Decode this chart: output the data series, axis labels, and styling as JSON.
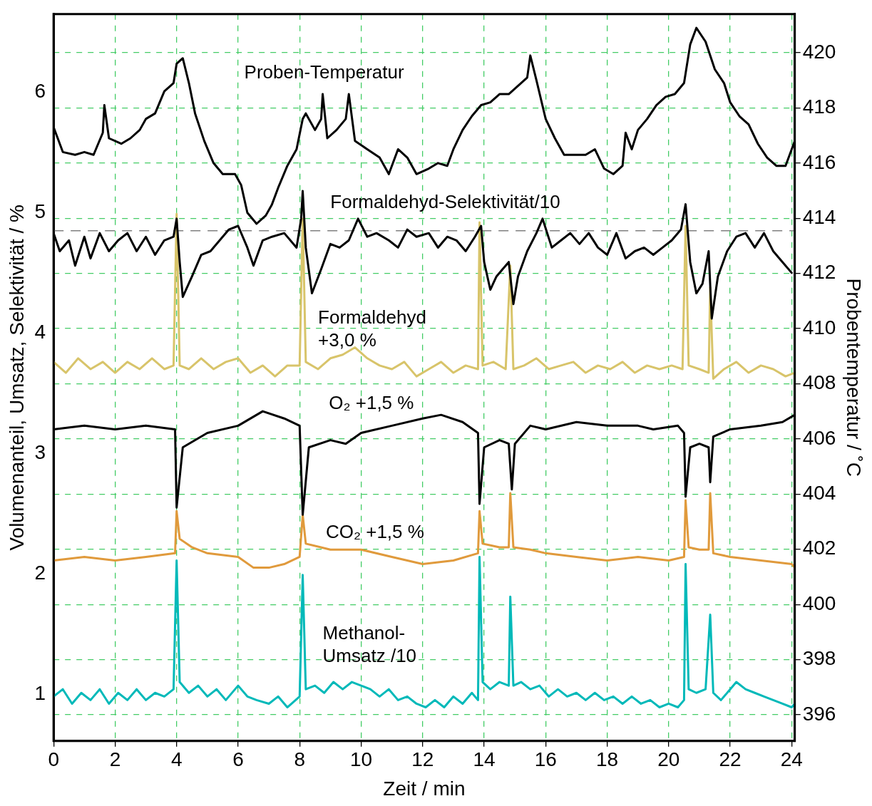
{
  "chart_data": {
    "type": "line",
    "xlabel": "Zeit / min",
    "ylabel": "Volumenanteil, Umsatz, Selektivität / %",
    "y2label": "Probentemperatur / ˚C",
    "xlim": [
      0,
      24.1
    ],
    "xticks": [
      0,
      2,
      4,
      6,
      8,
      10,
      12,
      14,
      16,
      18,
      20,
      22,
      24
    ],
    "ylim": [
      0.61,
      6.65
    ],
    "yticks": [
      1,
      2,
      3,
      4,
      5,
      6
    ],
    "y2lim": [
      395.05,
      421.4
    ],
    "y2ticks": [
      396,
      398,
      400,
      402,
      404,
      406,
      408,
      410,
      412,
      414,
      416,
      418,
      420
    ],
    "grid": true,
    "legend": false,
    "marker": "none",
    "line_style": "solid",
    "ref_lines": [
      {
        "axis": "y",
        "value": 4.85,
        "color": "#808080",
        "line_style": "dashed"
      }
    ],
    "series": [
      {
        "name": "Proben-Temperatur",
        "color": "#000000",
        "axis": "y2",
        "x": [
          0,
          0.3,
          0.7,
          1.0,
          1.3,
          1.6,
          1.65,
          1.8,
          2.2,
          2.5,
          2.8,
          3.0,
          3.3,
          3.6,
          3.9,
          4.0,
          4.2,
          4.4,
          4.6,
          4.9,
          5.2,
          5.5,
          5.9,
          6.1,
          6.3,
          6.6,
          6.9,
          7.1,
          7.3,
          7.6,
          7.9,
          8.1,
          8.2,
          8.5,
          8.7,
          8.75,
          8.9,
          9.2,
          9.5,
          9.6,
          9.8,
          10.2,
          10.6,
          10.9,
          11.2,
          11.5,
          11.8,
          12.2,
          12.5,
          12.8,
          13.0,
          13.3,
          13.6,
          13.9,
          14.2,
          14.5,
          14.8,
          15.0,
          15.4,
          15.5,
          15.7,
          16.0,
          16.3,
          16.6,
          17.0,
          17.3,
          17.6,
          17.9,
          18.2,
          18.5,
          18.6,
          18.8,
          19.0,
          19.3,
          19.6,
          19.9,
          20.2,
          20.5,
          20.7,
          20.9,
          21.2,
          21.5,
          21.8,
          22.0,
          22.3,
          22.6,
          22.9,
          23.2,
          23.5,
          23.8,
          24.0,
          24.1
        ],
        "values": [
          417.3,
          416.4,
          416.3,
          416.4,
          416.3,
          417.1,
          418.1,
          416.9,
          416.7,
          416.9,
          417.2,
          417.6,
          417.8,
          418.6,
          418.9,
          419.6,
          419.8,
          418.9,
          417.8,
          416.8,
          416.0,
          415.6,
          415.6,
          415.2,
          414.2,
          413.8,
          414.1,
          414.5,
          415.1,
          415.9,
          416.5,
          417.6,
          417.8,
          417.2,
          417.6,
          418.5,
          416.9,
          417.2,
          417.6,
          418.5,
          416.8,
          416.5,
          416.2,
          415.6,
          416.5,
          416.2,
          415.6,
          415.8,
          416.0,
          415.9,
          416.5,
          417.2,
          417.7,
          418.1,
          418.2,
          418.5,
          418.5,
          418.7,
          419.1,
          419.9,
          419.0,
          417.6,
          416.9,
          416.3,
          416.3,
          416.3,
          416.5,
          415.8,
          415.6,
          415.9,
          417.1,
          416.5,
          417.2,
          417.6,
          418.1,
          418.4,
          418.5,
          418.9,
          420.3,
          420.9,
          420.4,
          419.4,
          418.9,
          418.2,
          417.7,
          417.4,
          416.7,
          416.2,
          415.9,
          415.9,
          416.5,
          416.8
        ]
      },
      {
        "name": "Formaldehyd-Selektivität/10",
        "color": "#000000",
        "x": [
          0,
          0.2,
          0.5,
          0.7,
          1.0,
          1.2,
          1.5,
          1.8,
          2.1,
          2.4,
          2.7,
          3.0,
          3.3,
          3.6,
          3.9,
          4.0,
          4.1,
          4.2,
          4.5,
          4.8,
          5.1,
          5.4,
          5.7,
          6.0,
          6.3,
          6.5,
          6.8,
          7.1,
          7.5,
          7.9,
          8.05,
          8.1,
          8.2,
          8.4,
          8.7,
          9.0,
          9.3,
          9.6,
          9.9,
          10.2,
          10.5,
          10.9,
          11.2,
          11.5,
          11.8,
          12.2,
          12.5,
          12.8,
          13.1,
          13.4,
          13.7,
          13.9,
          14.0,
          14.2,
          14.4,
          14.6,
          14.8,
          14.95,
          15.1,
          15.4,
          15.7,
          15.9,
          16.2,
          16.5,
          16.8,
          17.1,
          17.4,
          17.7,
          18.0,
          18.3,
          18.6,
          18.9,
          19.2,
          19.5,
          19.8,
          20.1,
          20.4,
          20.55,
          20.7,
          20.9,
          21.1,
          21.3,
          21.4,
          21.6,
          21.9,
          22.2,
          22.5,
          22.8,
          23.1,
          23.4,
          23.7,
          24.0
        ],
        "values": [
          4.83,
          4.68,
          4.77,
          4.56,
          4.8,
          4.62,
          4.83,
          4.68,
          4.77,
          4.83,
          4.68,
          4.8,
          4.65,
          4.77,
          4.8,
          4.95,
          4.59,
          4.3,
          4.47,
          4.65,
          4.68,
          4.77,
          4.86,
          4.89,
          4.71,
          4.56,
          4.77,
          4.8,
          4.83,
          4.71,
          4.95,
          5.18,
          4.71,
          4.33,
          4.53,
          4.74,
          4.71,
          4.77,
          4.95,
          4.8,
          4.83,
          4.77,
          4.71,
          4.86,
          4.8,
          4.83,
          4.71,
          4.8,
          4.77,
          4.68,
          4.8,
          4.89,
          4.59,
          4.36,
          4.47,
          4.53,
          4.59,
          4.24,
          4.47,
          4.68,
          4.83,
          4.95,
          4.71,
          4.77,
          4.83,
          4.74,
          4.83,
          4.71,
          4.65,
          4.83,
          4.62,
          4.68,
          4.71,
          4.65,
          4.71,
          4.77,
          4.86,
          5.07,
          4.59,
          4.33,
          4.41,
          4.68,
          4.12,
          4.47,
          4.68,
          4.8,
          4.83,
          4.71,
          4.83,
          4.68,
          4.59,
          4.5
        ]
      },
      {
        "name": "Formaldehyd\n+3,0 %",
        "color": "#d8c46a",
        "x": [
          0,
          0.4,
          0.8,
          1.2,
          1.6,
          2.0,
          2.4,
          2.8,
          3.2,
          3.6,
          3.9,
          4.0,
          4.1,
          4.4,
          4.8,
          5.2,
          5.6,
          6.0,
          6.4,
          6.8,
          7.2,
          7.6,
          8.0,
          8.1,
          8.2,
          8.6,
          9.0,
          9.4,
          9.8,
          10.2,
          10.6,
          11.0,
          11.4,
          11.8,
          12.2,
          12.6,
          13.0,
          13.4,
          13.8,
          13.85,
          13.95,
          14.3,
          14.7,
          14.85,
          14.95,
          15.3,
          15.7,
          16.1,
          16.5,
          16.9,
          17.3,
          17.7,
          18.1,
          18.5,
          18.9,
          19.3,
          19.7,
          20.1,
          20.45,
          20.55,
          20.65,
          21.0,
          21.3,
          21.35,
          21.45,
          21.8,
          22.2,
          22.6,
          23.0,
          23.4,
          23.8,
          24.1
        ],
        "values": [
          3.76,
          3.67,
          3.79,
          3.7,
          3.76,
          3.67,
          3.76,
          3.7,
          3.79,
          3.7,
          3.73,
          4.99,
          3.73,
          3.7,
          3.79,
          3.7,
          3.76,
          3.79,
          3.67,
          3.73,
          3.64,
          3.73,
          3.73,
          4.95,
          3.76,
          3.7,
          3.79,
          3.82,
          3.88,
          3.79,
          3.73,
          3.7,
          3.76,
          3.64,
          3.7,
          3.76,
          3.67,
          3.73,
          3.7,
          4.92,
          3.73,
          3.76,
          3.7,
          4.56,
          3.7,
          3.73,
          3.79,
          3.7,
          3.73,
          3.76,
          3.67,
          3.73,
          3.7,
          3.76,
          3.67,
          3.73,
          3.7,
          3.73,
          3.7,
          4.89,
          3.73,
          3.7,
          3.67,
          4.38,
          3.62,
          3.7,
          3.76,
          3.67,
          3.73,
          3.7,
          3.64,
          3.67
        ]
      },
      {
        "name": "O₂ +1,5 %",
        "color": "#000000",
        "x": [
          0,
          1,
          2,
          3,
          3.95,
          4.0,
          4.2,
          5,
          6,
          6.8,
          7.5,
          8.0,
          8.1,
          8.3,
          9,
          9.5,
          10,
          11,
          12,
          12.6,
          13.3,
          13.8,
          13.85,
          14.0,
          14.5,
          14.8,
          14.9,
          15.0,
          15.5,
          16,
          17,
          18,
          19,
          19.5,
          20.3,
          20.5,
          20.55,
          20.7,
          21.0,
          21.3,
          21.35,
          21.45,
          22,
          23,
          23.7,
          24.1
        ],
        "values": [
          3.2,
          3.23,
          3.2,
          3.23,
          3.2,
          2.55,
          3.05,
          3.17,
          3.23,
          3.35,
          3.29,
          3.23,
          2.49,
          3.05,
          3.11,
          3.08,
          3.17,
          3.23,
          3.29,
          3.32,
          3.26,
          3.17,
          2.58,
          3.05,
          3.11,
          3.08,
          2.7,
          3.08,
          3.23,
          3.2,
          3.26,
          3.23,
          3.23,
          3.2,
          3.23,
          3.17,
          2.64,
          3.05,
          3.08,
          3.05,
          2.76,
          3.14,
          3.2,
          3.23,
          3.26,
          3.32
        ]
      },
      {
        "name": "CO₂ +1,5 %",
        "color": "#e09a3c",
        "x": [
          0,
          1,
          2,
          3,
          3.95,
          4.0,
          4.1,
          4.5,
          5,
          6,
          6.5,
          7.0,
          7.5,
          8.0,
          8.1,
          8.2,
          9,
          10,
          11,
          12,
          13,
          13.8,
          13.85,
          13.95,
          14.5,
          14.8,
          14.85,
          14.95,
          15.5,
          16,
          17,
          18,
          19,
          20,
          20.5,
          20.55,
          20.65,
          21.0,
          21.3,
          21.35,
          21.45,
          22,
          23,
          24,
          24.1
        ],
        "values": [
          2.11,
          2.14,
          2.11,
          2.14,
          2.17,
          2.52,
          2.29,
          2.22,
          2.17,
          2.14,
          2.05,
          2.05,
          2.08,
          2.14,
          2.49,
          2.25,
          2.2,
          2.2,
          2.14,
          2.08,
          2.11,
          2.17,
          2.52,
          2.25,
          2.22,
          2.22,
          2.67,
          2.22,
          2.2,
          2.17,
          2.14,
          2.11,
          2.14,
          2.11,
          2.14,
          2.61,
          2.22,
          2.2,
          2.2,
          2.67,
          2.17,
          2.14,
          2.11,
          2.08,
          2.05
        ]
      },
      {
        "name": "Methanol-\nUmsatz /10",
        "color": "#00b9b9",
        "x": [
          0,
          0.3,
          0.6,
          0.9,
          1.2,
          1.5,
          1.8,
          2.1,
          2.4,
          2.7,
          3.0,
          3.3,
          3.6,
          3.9,
          4.0,
          4.1,
          4.4,
          4.7,
          5.0,
          5.3,
          5.6,
          6.0,
          6.3,
          6.6,
          7.0,
          7.3,
          7.6,
          8.0,
          8.1,
          8.2,
          8.5,
          8.8,
          9.1,
          9.4,
          9.7,
          10.0,
          10.3,
          10.6,
          10.9,
          11.2,
          11.5,
          11.8,
          12.1,
          12.4,
          12.7,
          13.0,
          13.3,
          13.6,
          13.8,
          13.85,
          13.95,
          14.2,
          14.5,
          14.8,
          14.85,
          14.95,
          15.2,
          15.5,
          15.8,
          16.1,
          16.4,
          16.7,
          17.0,
          17.3,
          17.6,
          17.9,
          18.2,
          18.5,
          18.8,
          19.1,
          19.4,
          19.7,
          20.0,
          20.3,
          20.5,
          20.55,
          20.65,
          20.9,
          21.2,
          21.35,
          21.45,
          21.7,
          22.0,
          22.2,
          22.5,
          22.8,
          23.1,
          23.4,
          23.7,
          24.0,
          24.1
        ],
        "values": [
          0.98,
          1.04,
          0.92,
          1.01,
          0.95,
          1.04,
          0.92,
          1.01,
          0.95,
          1.04,
          0.95,
          1.01,
          0.98,
          1.04,
          2.11,
          1.1,
          1.01,
          1.07,
          0.98,
          1.04,
          0.95,
          1.07,
          0.98,
          0.95,
          0.92,
          0.98,
          0.89,
          0.98,
          1.99,
          1.04,
          1.07,
          1.01,
          1.1,
          1.04,
          1.1,
          1.07,
          1.04,
          0.98,
          1.04,
          0.95,
          0.98,
          0.92,
          0.89,
          0.95,
          0.89,
          0.98,
          0.92,
          1.01,
          0.95,
          2.14,
          1.1,
          1.04,
          1.1,
          1.07,
          1.81,
          1.07,
          1.1,
          1.04,
          1.07,
          0.98,
          1.04,
          0.98,
          1.01,
          0.95,
          1.01,
          0.95,
          0.98,
          0.92,
          0.98,
          0.92,
          0.95,
          0.89,
          0.92,
          0.89,
          0.95,
          2.08,
          1.04,
          1.01,
          1.04,
          1.66,
          1.01,
          0.95,
          1.04,
          1.1,
          1.04,
          1.01,
          0.98,
          0.95,
          0.92,
          0.89,
          0.92
        ]
      }
    ]
  }
}
